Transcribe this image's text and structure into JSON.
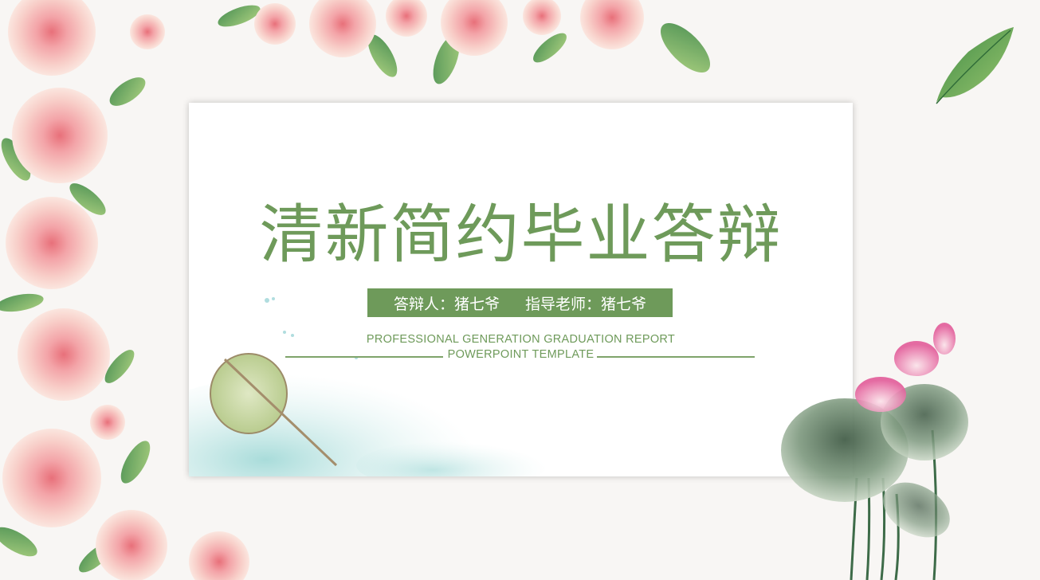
{
  "slide": {
    "title": "清新简约毕业答辩",
    "presenter_label": "答辩人：猪七爷",
    "advisor_label": "指导老师：猪七爷",
    "subtitle_line1": "PROFESSIONAL GENERATION GRADUATION REPORT",
    "subtitle_line2": "POWERPOINT TEMPLATE"
  },
  "colors": {
    "accent": "#6e9a5a",
    "background": "#f8f6f4",
    "card": "#ffffff",
    "rose": "#f4b6b8",
    "leaf": "#5e9a52",
    "lotus_leaf": "#6f8a6e",
    "water": "#a9dcdc"
  },
  "icons": [
    "rose-flower-icon",
    "green-leaf-icon",
    "lotus-plant-icon",
    "fan-icon"
  ]
}
